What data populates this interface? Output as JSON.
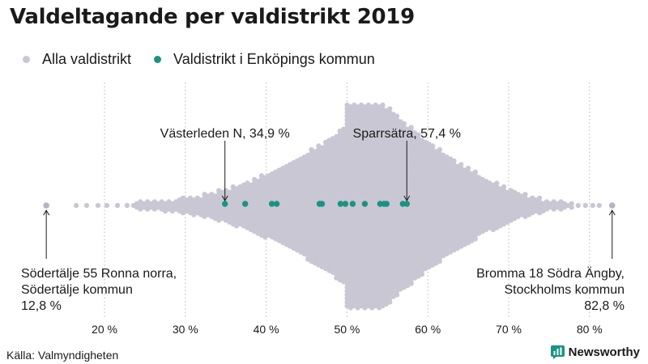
{
  "title": "Valdeltagande per valdistrikt 2019",
  "legend": [
    {
      "label": "Alla valdistrikt",
      "color": "#c9c7d3"
    },
    {
      "label": "Valdistrikt i Enköpings kommun",
      "color": "#1a9385"
    }
  ],
  "source": "Källa: Valmyndigheten",
  "brand": {
    "name": "Newsworthy",
    "color": "#1a9385"
  },
  "chart_data": {
    "type": "scatter",
    "subtype": "beeswarm",
    "title": "Valdeltagande per valdistrikt 2019",
    "xlabel": "",
    "xlim": [
      10,
      86
    ],
    "x_ticks": [
      20,
      30,
      40,
      50,
      60,
      70,
      80
    ],
    "x_tick_labels": [
      "20 %",
      "30 %",
      "40 %",
      "50 %",
      "60 %",
      "70 %",
      "80 %"
    ],
    "grid": "vertical dotted",
    "series": [
      {
        "name": "Alla valdistrikt",
        "color": "#c9c7d3",
        "min": 12.8,
        "max": 82.8,
        "center": 53.5
      },
      {
        "name": "Valdistrikt i Enköpings kommun",
        "color": "#1a9385",
        "values": [
          34.9,
          37.4,
          40.7,
          41.3,
          46.6,
          46.9,
          49.2,
          49.8,
          50.7,
          52.2,
          54.1,
          54.6,
          54.9,
          56.9,
          57.4
        ]
      }
    ],
    "annotations": [
      {
        "x": 34.9,
        "lines": [
          "Västerleden N, 34,9 %"
        ],
        "side": "above"
      },
      {
        "x": 57.4,
        "lines": [
          "Sparrsätra, 57,4 %"
        ],
        "side": "above"
      },
      {
        "x": 12.8,
        "lines": [
          "Södertälje 55 Ronna norra,",
          "Södertälje kommun",
          "12,8 %"
        ],
        "side": "below",
        "align": "left"
      },
      {
        "x": 82.8,
        "lines": [
          "Bromma 18 Södra Ängby,",
          "Stockholms kommun",
          "82,8 %"
        ],
        "side": "below",
        "align": "right"
      }
    ]
  }
}
